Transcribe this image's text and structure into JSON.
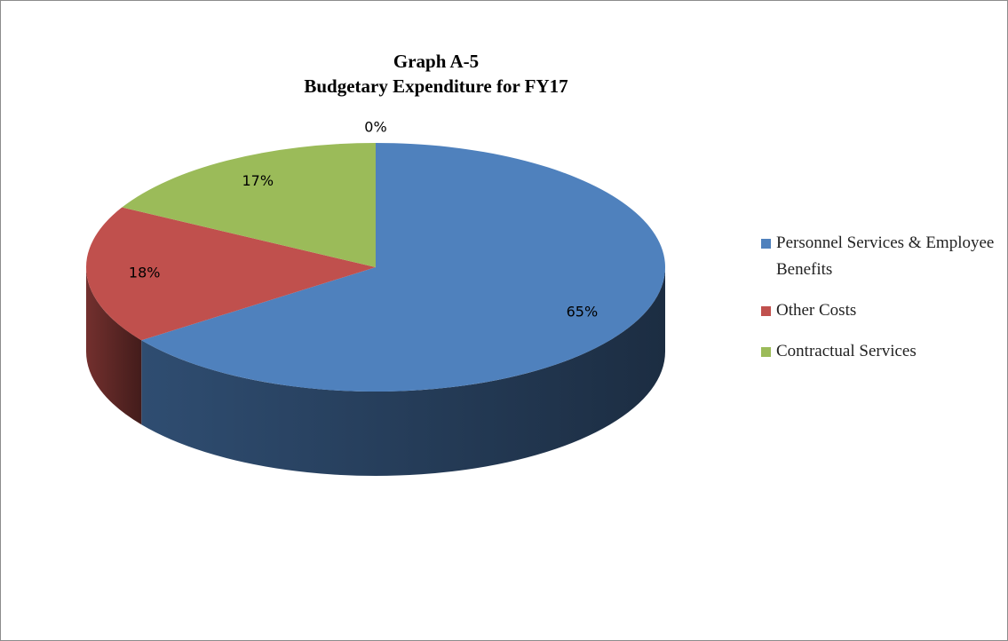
{
  "chart_data": {
    "type": "pie",
    "title": "Graph  A-5",
    "subtitle": "Budgetary Expenditure for FY17",
    "categories": [
      "Personnel Services & Employee Benefits",
      "Other Costs",
      "Contractual Services",
      null
    ],
    "values": [
      65,
      18,
      17,
      0
    ],
    "value_labels": [
      "65%",
      "18%",
      "17%",
      "0%"
    ],
    "colors": [
      "#4f81bd",
      "#c0504d",
      "#9bbb59",
      "#8064a2"
    ],
    "legend": "right"
  }
}
